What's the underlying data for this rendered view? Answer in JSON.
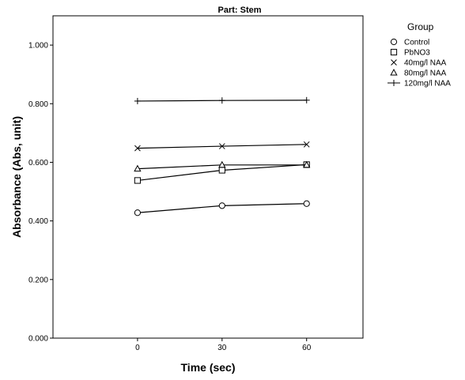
{
  "chart_data": {
    "type": "line",
    "title": "Part: Stem",
    "xlabel": "Time (sec)",
    "ylabel": "Absorbance (Abs, unit)",
    "x": [
      0,
      30,
      60
    ],
    "x_tick_labels": [
      "0",
      "30",
      "60"
    ],
    "xlim": [
      -30,
      80
    ],
    "ylim": [
      0,
      1.1
    ],
    "y_ticks": [
      0,
      0.2,
      0.4,
      0.6,
      0.8,
      1.0
    ],
    "y_tick_labels": [
      "0.000",
      "0.200",
      "0.400",
      "0.600",
      "0.800",
      "1.000"
    ],
    "grid": false,
    "legend": {
      "title": "Group",
      "placement": "right"
    },
    "series": [
      {
        "name": "Control",
        "marker": "circle",
        "values": [
          0.428,
          0.452,
          0.459
        ]
      },
      {
        "name": "PbNO3",
        "marker": "square",
        "values": [
          0.538,
          0.573,
          0.592
        ]
      },
      {
        "name": "40mg/l NAA",
        "marker": "x",
        "values": [
          0.648,
          0.655,
          0.661
        ]
      },
      {
        "name": "80mg/l NAA",
        "marker": "triangle",
        "values": [
          0.578,
          0.591,
          0.591
        ]
      },
      {
        "name": "120mg/l NAA",
        "marker": "plus",
        "values": [
          0.809,
          0.811,
          0.812
        ]
      }
    ]
  }
}
